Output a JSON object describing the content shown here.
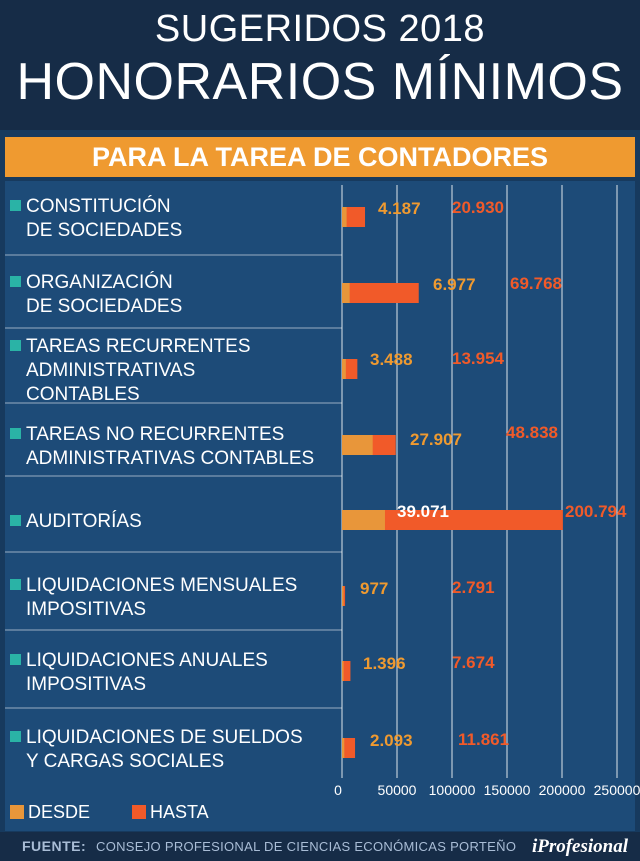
{
  "header": {
    "title_line1": "SUGERIDOS 2018",
    "title_line2": "HONORARIOS MÍNIMOS",
    "subtitle": "PARA LA TAREA DE CONTADORES"
  },
  "colors": {
    "desde": "#e8963a",
    "hasta": "#f15a29",
    "label_orange": "#ef9a30",
    "bullet": "#2ab3a6",
    "panel": "#1d4b78"
  },
  "chart_data": {
    "type": "bar",
    "orientation": "horizontal",
    "title": "PARA LA TAREA DE CONTADORES",
    "categories": [
      [
        "CONSTITUCIÓN",
        "DE SOCIEDADES"
      ],
      [
        "ORGANIZACIÓN",
        "DE SOCIEDADES"
      ],
      [
        "TAREAS RECURRENTES",
        "ADMINISTRATIVAS",
        "CONTABLES"
      ],
      [
        "TAREAS NO RECURRENTES",
        "ADMINISTRATIVAS CONTABLES"
      ],
      [
        "AUDITORÍAS"
      ],
      [
        "LIQUIDACIONES MENSUALES",
        "IMPOSITIVAS"
      ],
      [
        "LIQUIDACIONES ANUALES",
        "IMPOSITIVAS"
      ],
      [
        "LIQUIDACIONES DE SUELDOS",
        "Y CARGAS SOCIALES"
      ]
    ],
    "series": [
      {
        "name": "DESDE",
        "values": [
          4187,
          6977,
          3488,
          27907,
          39071,
          977,
          1396,
          2093
        ],
        "labels": [
          "4.187",
          "6.977",
          "3.488",
          "27.907",
          "39.071",
          "977",
          "1.396",
          "2.093"
        ]
      },
      {
        "name": "HASTA",
        "values": [
          20930,
          69768,
          13954,
          48838,
          200794,
          2791,
          7674,
          11861
        ],
        "labels": [
          "20.930",
          "69.768",
          "13.954",
          "48.838",
          "200.794",
          "2.791",
          "7.674",
          "11.861"
        ]
      }
    ],
    "xlim": [
      0,
      250000
    ],
    "xticks": [
      0,
      50000,
      100000,
      150000,
      200000,
      250000
    ],
    "xtick_labels": [
      "0",
      "50000",
      "100000",
      "150000",
      "200000",
      "250000"
    ],
    "legend": "bottom-left"
  },
  "legend": {
    "desde": "DESDE",
    "hasta": "HASTA"
  },
  "footer": {
    "source_label": "FUENTE:",
    "source_text": "CONSEJO PROFESIONAL DE CIENCIAS ECONÓMICAS PORTEÑO",
    "brand": "iProfesional"
  }
}
